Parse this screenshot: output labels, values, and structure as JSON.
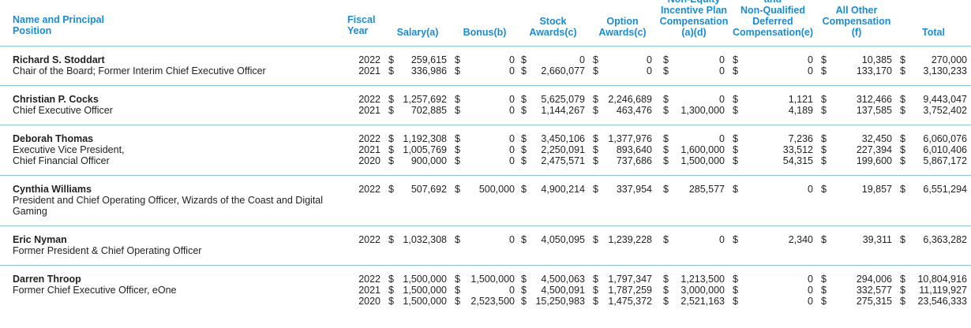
{
  "table": {
    "header": [
      [
        "Name and Principal",
        "Position"
      ],
      [
        "Fiscal",
        "Year"
      ],
      [
        "Salary(a)"
      ],
      [
        "Bonus(b)"
      ],
      [
        "Stock",
        "Awards(c)"
      ],
      [
        "Option",
        "Awards(c)"
      ],
      [
        "Non-Equity",
        "Incentive Plan",
        "Compensation",
        "(a)(d)"
      ],
      [
        "and",
        "Non-Qualified",
        "Deferred",
        "Compensation(e)"
      ],
      [
        "All Other",
        "Compensation",
        "(f)"
      ],
      [
        "Total"
      ]
    ],
    "rows": [
      {
        "name": "Richard S. Stoddart",
        "title": [
          "Chair of the Board; Former Interim Chief Executive Officer"
        ],
        "years": [
          {
            "year": "2022",
            "cells": [
              [
                "$",
                "259,615"
              ],
              [
                "$",
                "0"
              ],
              [
                "$",
                "0"
              ],
              [
                "$",
                "0"
              ],
              [
                "$",
                "0"
              ],
              [
                "$",
                "0"
              ],
              [
                "$",
                "10,385"
              ],
              [
                "$",
                "270,000"
              ]
            ]
          },
          {
            "year": "2021",
            "cells": [
              [
                "$",
                "336,986"
              ],
              [
                "$",
                "0"
              ],
              [
                "$",
                "2,660,077"
              ],
              [
                "$",
                "0"
              ],
              [
                "$",
                "0"
              ],
              [
                "$",
                "0"
              ],
              [
                "$",
                "133,170"
              ],
              [
                "$",
                "3,130,233"
              ]
            ]
          }
        ]
      },
      {
        "name": "Christian P. Cocks",
        "title": [
          "Chief Executive Officer"
        ],
        "years": [
          {
            "year": "2022",
            "cells": [
              [
                "$",
                "1,257,692"
              ],
              [
                "$",
                "0"
              ],
              [
                "$",
                "5,625,079"
              ],
              [
                "$",
                "2,246,689"
              ],
              [
                "$",
                "0"
              ],
              [
                "$",
                "1,121"
              ],
              [
                "$",
                "312,466"
              ],
              [
                "$",
                "9,443,047"
              ]
            ]
          },
          {
            "year": "2021",
            "cells": [
              [
                "$",
                "702,885"
              ],
              [
                "$",
                "0"
              ],
              [
                "$",
                "1,144,267"
              ],
              [
                "$",
                "463,476"
              ],
              [
                "$",
                "1,300,000"
              ],
              [
                "$",
                "4,189"
              ],
              [
                "$",
                "137,585"
              ],
              [
                "$",
                "3,752,402"
              ]
            ]
          }
        ]
      },
      {
        "name": "Deborah Thomas",
        "title": [
          "Executive Vice President,",
          "Chief Financial Officer"
        ],
        "years": [
          {
            "year": "2022",
            "cells": [
              [
                "$",
                "1,192,308"
              ],
              [
                "$",
                "0"
              ],
              [
                "$",
                "3,450,106"
              ],
              [
                "$",
                "1,377,976"
              ],
              [
                "$",
                "0"
              ],
              [
                "$",
                "7,236"
              ],
              [
                "$",
                "32,450"
              ],
              [
                "$",
                "6,060,076"
              ]
            ]
          },
          {
            "year": "2021",
            "cells": [
              [
                "$",
                "1,005,769"
              ],
              [
                "$",
                "0"
              ],
              [
                "$",
                "2,250,091"
              ],
              [
                "$",
                "893,640"
              ],
              [
                "$",
                "1,600,000"
              ],
              [
                "$",
                "33,512"
              ],
              [
                "$",
                "227,394"
              ],
              [
                "$",
                "6,010,406"
              ]
            ]
          },
          {
            "year": "2020",
            "cells": [
              [
                "$",
                "900,000"
              ],
              [
                "$",
                "0"
              ],
              [
                "$",
                "2,475,571"
              ],
              [
                "$",
                "737,686"
              ],
              [
                "$",
                "1,500,000"
              ],
              [
                "$",
                "54,315"
              ],
              [
                "$",
                "199,600"
              ],
              [
                "$",
                "5,867,172"
              ]
            ]
          }
        ]
      },
      {
        "name": "Cynthia Williams",
        "title": [
          "President and Chief Operating Officer, Wizards of the Coast and Digital Gaming"
        ],
        "years": [
          {
            "year": "2022",
            "cells": [
              [
                "$",
                "507,692"
              ],
              [
                "$",
                "500,000"
              ],
              [
                "$",
                "4,900,214"
              ],
              [
                "$",
                "337,954"
              ],
              [
                "$",
                "285,577"
              ],
              [
                "$",
                "0"
              ],
              [
                "$",
                "19,857"
              ],
              [
                "$",
                "6,551,294"
              ]
            ]
          }
        ]
      },
      {
        "name": "Eric Nyman",
        "title": [
          "Former President & Chief Operating Officer"
        ],
        "years": [
          {
            "year": "2022",
            "cells": [
              [
                "$",
                "1,032,308"
              ],
              [
                "$",
                "0"
              ],
              [
                "$",
                "4,050,095"
              ],
              [
                "$",
                "1,239,228"
              ],
              [
                "$",
                "0"
              ],
              [
                "$",
                "2,340"
              ],
              [
                "$",
                "39,311"
              ],
              [
                "$",
                "6,363,282"
              ]
            ]
          }
        ]
      },
      {
        "name": "Darren Throop",
        "title": [
          "Former Chief Executive Officer, eOne"
        ],
        "years": [
          {
            "year": "2022",
            "cells": [
              [
                "$",
                "1,500,000"
              ],
              [
                "$",
                "1,500,000"
              ],
              [
                "$",
                "4,500,063"
              ],
              [
                "$",
                "1,797,347"
              ],
              [
                "$",
                "1,213,500"
              ],
              [
                "$",
                "0"
              ],
              [
                "$",
                "294,006"
              ],
              [
                "$",
                "10,804,916"
              ]
            ]
          },
          {
            "year": "2021",
            "cells": [
              [
                "$",
                "1,500,000"
              ],
              [
                "$",
                "0"
              ],
              [
                "$",
                "4,500,091"
              ],
              [
                "$",
                "1,787,259"
              ],
              [
                "$",
                "3,000,000"
              ],
              [
                "$",
                "0"
              ],
              [
                "$",
                "332,577"
              ],
              [
                "$",
                "11,119,927"
              ]
            ]
          },
          {
            "year": "2020",
            "cells": [
              [
                "$",
                "1,500,000"
              ],
              [
                "$",
                "2,523,500"
              ],
              [
                "$",
                "15,250,983"
              ],
              [
                "$",
                "1,475,372"
              ],
              [
                "$",
                "2,521,163"
              ],
              [
                "$",
                "0"
              ],
              [
                "$",
                "275,315"
              ],
              [
                "$",
                "23,546,333"
              ]
            ]
          }
        ]
      }
    ]
  }
}
